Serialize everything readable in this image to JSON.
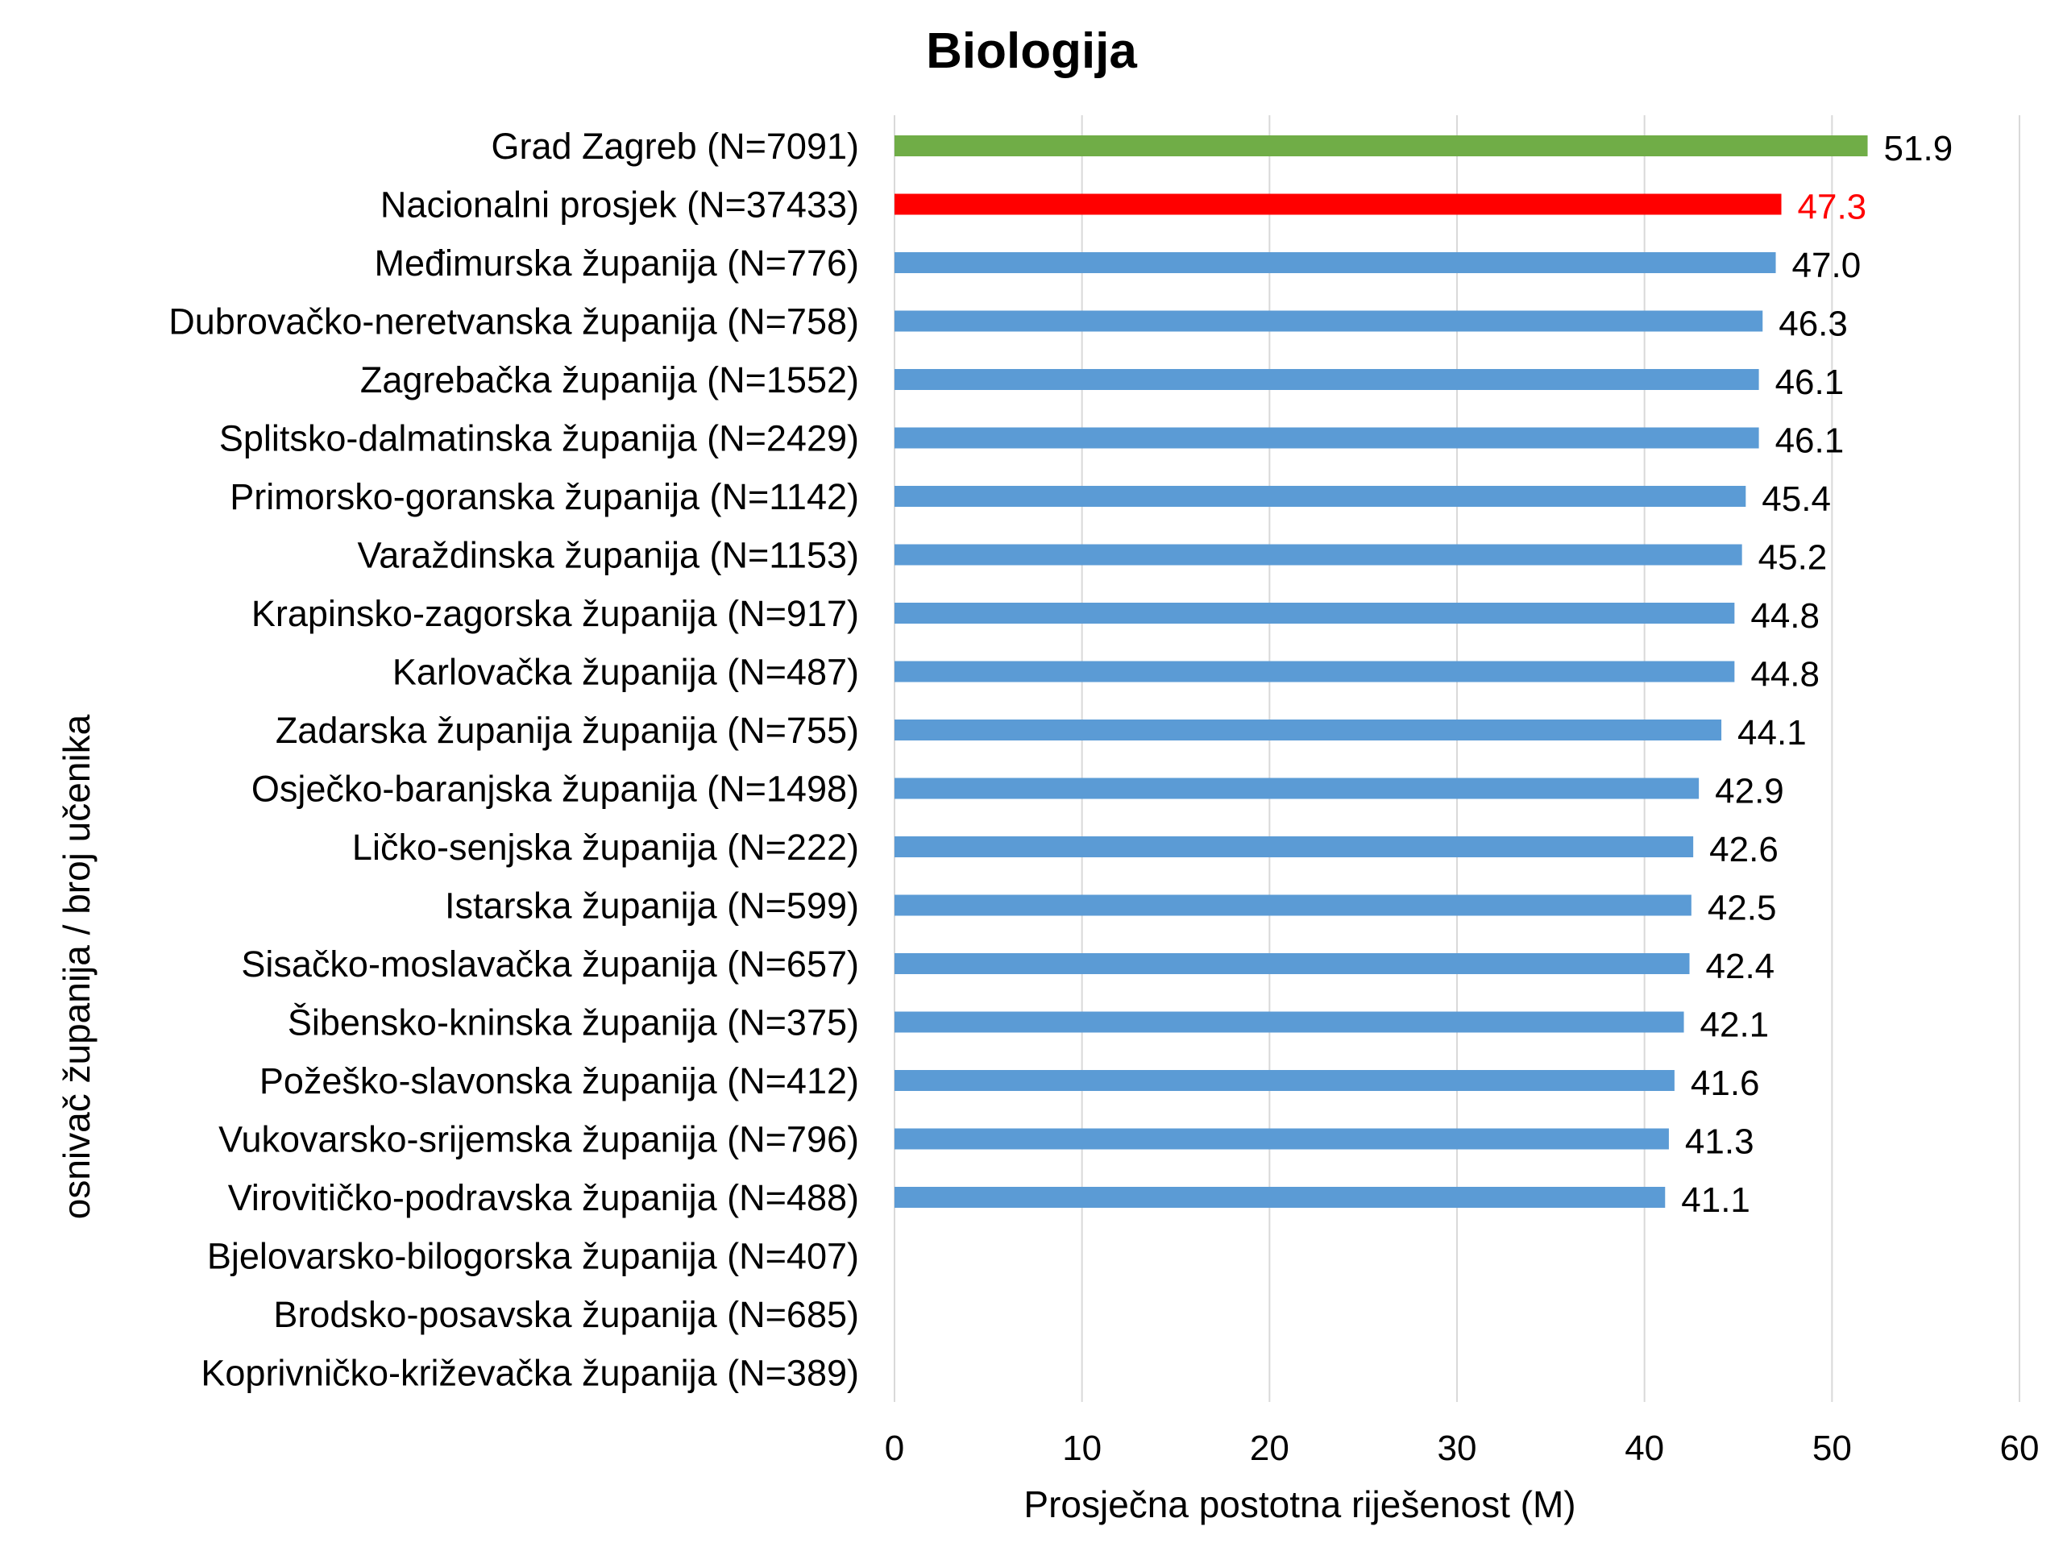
{
  "chart_data": {
    "type": "bar",
    "orientation": "horizontal",
    "title": "Biologija",
    "xlabel": "Prosječna postotna riješenost (M)",
    "ylabel": "osnivač županija / broj učenika",
    "xlim": [
      0,
      60
    ],
    "x_ticks": [
      "0",
      "10",
      "20",
      "30",
      "40",
      "50",
      "60"
    ],
    "grid": "vertical",
    "categories": [
      "Grad Zagreb (N=7091)",
      "Nacionalni prosjek (N=37433)",
      "Međimurska županija (N=776)",
      "Dubrovačko-neretvanska županija (N=758)",
      "Zagrebačka županija (N=1552)",
      "Splitsko-dalmatinska županija (N=2429)",
      "Primorsko-goranska županija (N=1142)",
      "Varaždinska županija (N=1153)",
      "Krapinsko-zagorska županija (N=917)",
      "Karlovačka županija (N=487)",
      "Zadarska županija županija (N=755)",
      "Osječko-baranjska županija (N=1498)",
      "Ličko-senjska županija (N=222)",
      "Istarska županija (N=599)",
      "Sisačko-moslavačka županija (N=657)",
      "Šibensko-kninska županija (N=375)",
      "Požeško-slavonska županija (N=412)",
      "Vukovarsko-srijemska županija (N=796)",
      "Virovitičko-podravska županija (N=488)",
      "Bjelovarsko-bilogorska županija (N=407)",
      "Brodsko-posavska županija (N=685)",
      "Koprivničko-križevačka županija (N=389)"
    ],
    "values": [
      51.9,
      47.3,
      47.0,
      46.3,
      46.1,
      46.1,
      45.4,
      45.2,
      44.8,
      44.8,
      44.1,
      42.9,
      42.6,
      42.5,
      42.4,
      42.1,
      41.6,
      41.3,
      41.1,
      null,
      null,
      null
    ],
    "value_labels": [
      "51.9",
      "47.3",
      "47.0",
      "46.3",
      "46.1",
      "46.1",
      "45.4",
      "45.2",
      "44.8",
      "44.8",
      "44.1",
      "42.9",
      "42.6",
      "42.5",
      "42.4",
      "42.1",
      "41.6",
      "41.3",
      "41.1",
      "",
      "",
      ""
    ],
    "bar_colors": [
      "#70AD47",
      "#FF0000",
      "#5B9BD5",
      "#5B9BD5",
      "#5B9BD5",
      "#5B9BD5",
      "#5B9BD5",
      "#5B9BD5",
      "#5B9BD5",
      "#5B9BD5",
      "#5B9BD5",
      "#5B9BD5",
      "#5B9BD5",
      "#5B9BD5",
      "#5B9BD5",
      "#5B9BD5",
      "#5B9BD5",
      "#5B9BD5",
      "#5B9BD5",
      "#5B9BD5",
      "#5B9BD5",
      "#5B9BD5"
    ],
    "label_colors": [
      "#000000",
      "#FF0000",
      "#000000",
      "#000000",
      "#000000",
      "#000000",
      "#000000",
      "#000000",
      "#000000",
      "#000000",
      "#000000",
      "#000000",
      "#000000",
      "#000000",
      "#000000",
      "#000000",
      "#000000",
      "#000000",
      "#000000",
      "#000000",
      "#000000",
      "#000000"
    ],
    "gridline_color": "#D9D9D9"
  }
}
